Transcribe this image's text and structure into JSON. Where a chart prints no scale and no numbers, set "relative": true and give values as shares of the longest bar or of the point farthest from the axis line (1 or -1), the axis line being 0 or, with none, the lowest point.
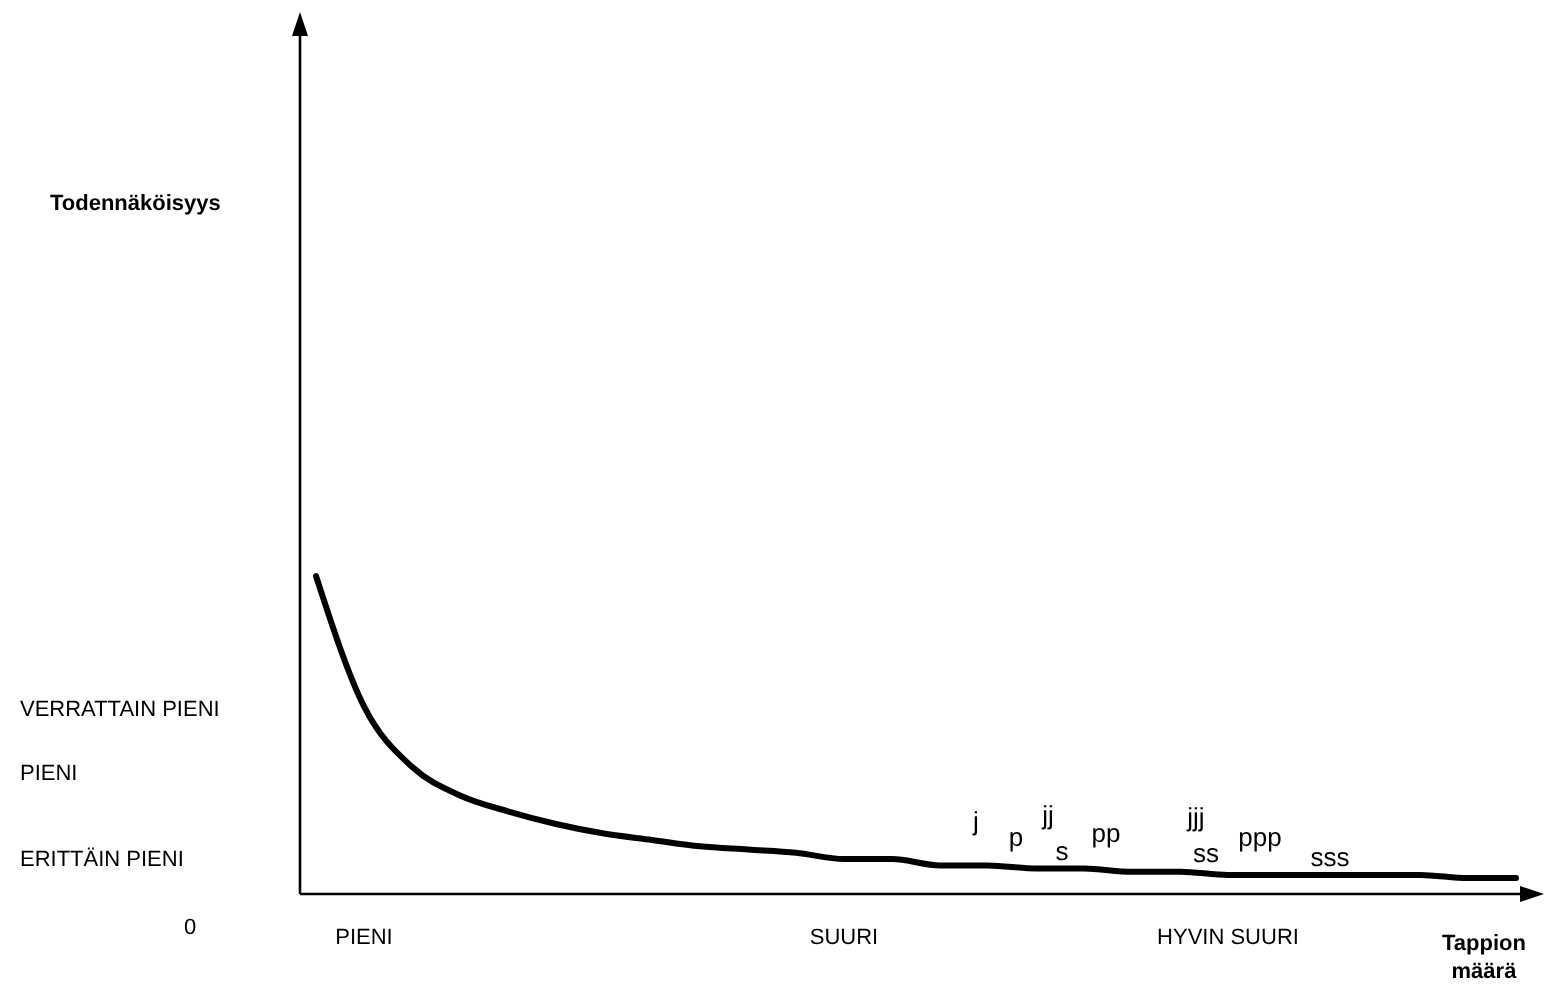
{
  "chart_data": {
    "type": "line",
    "relative": true,
    "xlabel": "Tappion määrä",
    "legend": false,
    "categories": [
      null,
      "PIENI",
      null,
      null,
      null,
      null,
      null,
      null,
      null,
      null,
      null,
      "SUURI",
      null,
      null,
      null,
      null,
      null,
      null,
      null,
      "HYVIN SUURI",
      null,
      null,
      null,
      null,
      null,
      null
    ],
    "series": [
      {
        "color": "#000000",
        "values": [
          1.0,
          0.59,
          0.4,
          0.31,
          0.26,
          0.22,
          0.19,
          0.17,
          0.15,
          0.14,
          0.13,
          0.11,
          0.11,
          0.09,
          0.09,
          0.08,
          0.08,
          0.07,
          0.07,
          0.06,
          0.06,
          0.06,
          0.06,
          0.06,
          0.05,
          0.05
        ]
      }
    ],
    "marker": "none",
    "line_style": "solid",
    "grid": false,
    "annotations": [
      "Todennäköisyys",
      "VERRATTAIN PIENI",
      "PIENI",
      "ERITTÄIN PIENI",
      "0",
      "j",
      "p",
      "jj",
      "s",
      "pp",
      "jjj",
      "ss",
      "ppp",
      "sss"
    ]
  }
}
